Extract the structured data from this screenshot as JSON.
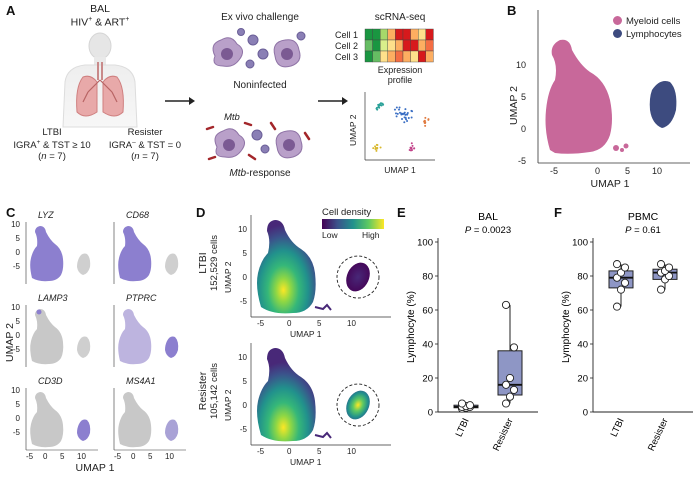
{
  "panels": {
    "A": "A",
    "B": "B",
    "C": "C",
    "D": "D",
    "E": "E",
    "F": "F"
  },
  "panelA": {
    "title_line1": "BAL",
    "title_line2_a": "HIV",
    "title_line2_sup1": "+",
    "title_line2_b": " & ART",
    "title_line2_sup2": "+",
    "ltbi_label": "LTBI",
    "ltbi_criteria_a": "IGRA",
    "ltbi_criteria_sup": "+",
    "ltbi_criteria_b": " & TST ≥ 10",
    "ltbi_n_pre": "(",
    "ltbi_n_it": "n",
    "ltbi_n_post": " = 7)",
    "resister_label": "Resister",
    "resister_criteria_a": "IGRA",
    "resister_criteria_sup": "–",
    "resister_criteria_b": " & TST = 0",
    "resister_n_pre": "(",
    "resister_n_it": "n",
    "resister_n_post": " = 7)",
    "challenge_title": "Ex vivo challenge",
    "noninfected_label": "Noninfected",
    "mtb_label": "Mtb",
    "mtb_response_it": "Mtb",
    "mtb_response_rest": "-response",
    "scrna_title": "scRNA-seq",
    "cells": [
      "Cell 1",
      "Cell 2",
      "Cell 3"
    ],
    "expression_line1": "Expression",
    "expression_line2": "profile",
    "umap_x": "UMAP 1",
    "umap_y": "UMAP 2",
    "heat_colors": [
      [
        "#1a9641",
        "#1a9641",
        "#a6d96a",
        "#fdae61",
        "#d7191c",
        "#d7191c",
        "#fdae61",
        "#fee08b",
        "#d7191c"
      ],
      [
        "#66bd63",
        "#1a9641",
        "#d9ef8b",
        "#fee08b",
        "#fdae61",
        "#d7191c",
        "#d7191c",
        "#fdae61",
        "#f46d43"
      ],
      [
        "#1a9641",
        "#66bd63",
        "#fee08b",
        "#fdae61",
        "#f46d43",
        "#fdae61",
        "#fee08b",
        "#d7191c",
        "#fdae61"
      ]
    ]
  },
  "panelB": {
    "legend": [
      {
        "label": "Myeloid cells",
        "color": "#c8689a"
      },
      {
        "label": "Lymphocytes",
        "color": "#3d4b7f"
      }
    ],
    "xlabel": "UMAP 1",
    "ylabel": "UMAP 2",
    "xticks": [
      "-5",
      "0",
      "5",
      "10"
    ],
    "yticks": [
      "10",
      "5",
      "0",
      "-5"
    ]
  },
  "panelC": {
    "genes": [
      "LYZ",
      "CD68",
      "LAMP3",
      "PTPRC",
      "CD3D",
      "MS4A1"
    ],
    "xlabel": "UMAP 1",
    "ylabel": "UMAP 2",
    "xticks": [
      "-5",
      "0",
      "5",
      "10"
    ],
    "yticks": [
      "10",
      "5",
      "0",
      "-5"
    ]
  },
  "panelD": {
    "legend_title": "Cell density",
    "legend_low": "Low",
    "legend_high": "High",
    "groups": [
      {
        "name": "LTBI",
        "cells": "152,529 cells"
      },
      {
        "name": "Resister",
        "cells": "105,142 cells"
      }
    ],
    "xlabel": "UMAP 1",
    "ylabel": "UMAP 2",
    "xticks": [
      "-5",
      "0",
      "5",
      "10"
    ],
    "yticks": [
      "10",
      "5",
      "0",
      "-5"
    ]
  },
  "chart_data": [
    {
      "type": "box",
      "title": "BAL",
      "pvalue_label": "P",
      "pvalue_text": " = 0.0023",
      "ylabel": "Lymphocyte (%)",
      "categories": [
        "LTBI",
        "Resister"
      ],
      "ylim": [
        0,
        100
      ],
      "yticks": [
        0,
        20,
        40,
        60,
        80,
        100
      ],
      "boxes": [
        {
          "min": 2,
          "q1": 2.5,
          "median": 3,
          "q3": 4,
          "max": 5,
          "points": [
            2,
            2.5,
            3,
            3,
            3.5,
            4,
            5
          ]
        },
        {
          "min": 5,
          "q1": 10,
          "median": 16,
          "q3": 36,
          "max": 63,
          "points": [
            5,
            9,
            13,
            16,
            20,
            38,
            63
          ]
        }
      ],
      "box_color": "#8e96c5"
    },
    {
      "type": "box",
      "title": "PBMC",
      "pvalue_label": "P",
      "pvalue_text": " = 0.61",
      "ylabel": "Lymphocyte (%)",
      "categories": [
        "LTBI",
        "Resister"
      ],
      "ylim": [
        0,
        100
      ],
      "yticks": [
        0,
        20,
        40,
        60,
        80,
        100
      ],
      "boxes": [
        {
          "min": 62,
          "q1": 73,
          "median": 79,
          "q3": 83,
          "max": 87,
          "points": [
            62,
            72,
            76,
            79,
            82,
            85,
            87
          ]
        },
        {
          "min": 72,
          "q1": 78,
          "median": 82,
          "q3": 84,
          "max": 87,
          "points": [
            72,
            78,
            80,
            82,
            83,
            85,
            87
          ]
        }
      ],
      "box_color": "#8e96c5"
    }
  ]
}
